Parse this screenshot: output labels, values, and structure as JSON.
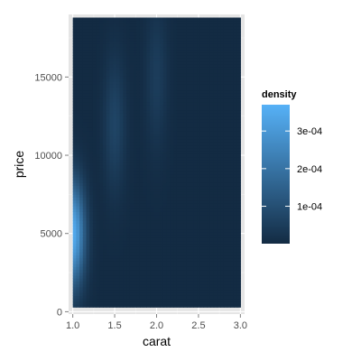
{
  "chart_data": {
    "type": "heatmap",
    "title": "",
    "xlabel": "carat",
    "ylabel": "price",
    "xlim": [
      0.95,
      3.05
    ],
    "ylim": [
      -150,
      19000
    ],
    "data_extent": {
      "x": [
        1.0,
        3.0
      ],
      "y": [
        300,
        18800
      ]
    },
    "x_ticks": [
      1.0,
      1.5,
      2.0,
      2.5,
      3.0
    ],
    "x_tick_labels": [
      "1.0",
      "1.5",
      "2.0",
      "2.5",
      "3.0"
    ],
    "y_ticks": [
      0,
      5000,
      10000,
      15000
    ],
    "y_tick_labels": [
      "0",
      "5000",
      "10000",
      "15000"
    ],
    "grid": true,
    "fill": "density",
    "density_peaks": [
      {
        "carat": 1.0,
        "price": 5000,
        "density": 0.00035
      },
      {
        "carat": 1.5,
        "price": 12000,
        "density": 7e-05
      },
      {
        "carat": 2.0,
        "price": 15000,
        "density": 5e-05
      }
    ],
    "legend": {
      "title": "density",
      "placement": "right",
      "range": [
        5e-07,
        0.00037
      ],
      "breaks": [
        0.0001,
        0.0002,
        0.0003
      ],
      "labels": [
        "1e-04",
        "2e-04",
        "3e-04"
      ],
      "low_color": "#132B43",
      "high_color": "#56B1F7"
    }
  },
  "colors": {
    "panel_background": "#e5e5e5",
    "grid_major": "#ffffff",
    "grid_minor": "#f2f2f2",
    "tick_mark": "#7f7f7f"
  }
}
